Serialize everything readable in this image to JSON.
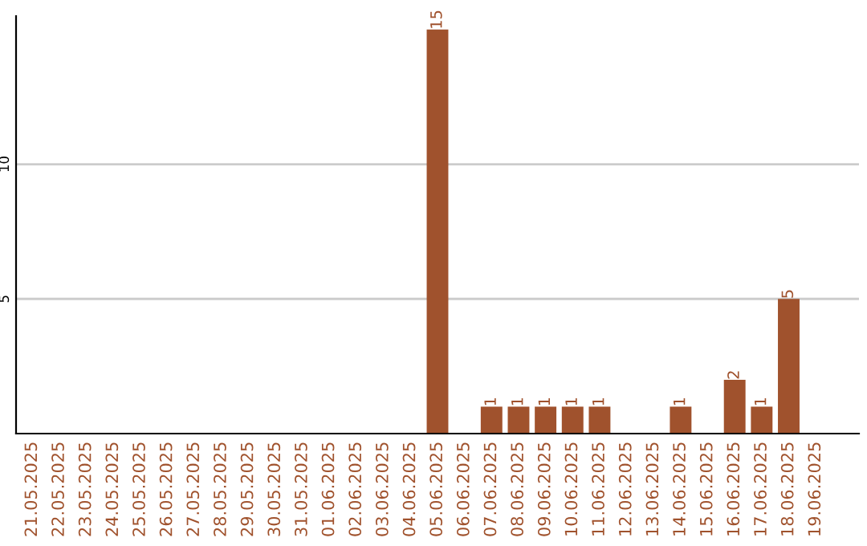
{
  "chart_data": {
    "type": "bar",
    "categories": [
      "21.05.2025",
      "22.05.2025",
      "23.05.2025",
      "24.05.2025",
      "25.05.2025",
      "26.05.2025",
      "27.05.2025",
      "28.05.2025",
      "29.05.2025",
      "30.05.2025",
      "31.05.2025",
      "01.06.2025",
      "02.06.2025",
      "03.06.2025",
      "04.06.2025",
      "05.06.2025",
      "06.06.2025",
      "07.06.2025",
      "08.06.2025",
      "09.06.2025",
      "10.06.2025",
      "11.06.2025",
      "12.06.2025",
      "13.06.2025",
      "14.06.2025",
      "15.06.2025",
      "16.06.2025",
      "17.06.2025",
      "18.06.2025",
      "19.06.2025"
    ],
    "values": [
      0,
      0,
      0,
      0,
      0,
      0,
      0,
      0,
      0,
      0,
      0,
      0,
      0,
      0,
      0,
      15,
      0,
      1,
      1,
      1,
      1,
      1,
      0,
      0,
      1,
      0,
      2,
      1,
      5,
      0
    ],
    "value_labels": [
      null,
      null,
      null,
      null,
      null,
      null,
      null,
      null,
      null,
      null,
      null,
      null,
      null,
      null,
      null,
      "15",
      null,
      "1",
      "1",
      "1",
      "1",
      "1",
      null,
      null,
      "1",
      null,
      "2",
      "1",
      "5",
      null
    ],
    "color": "#a0522d",
    "ylim": [
      0,
      15.5
    ],
    "yticks": [
      5,
      10
    ],
    "grid": "y"
  }
}
